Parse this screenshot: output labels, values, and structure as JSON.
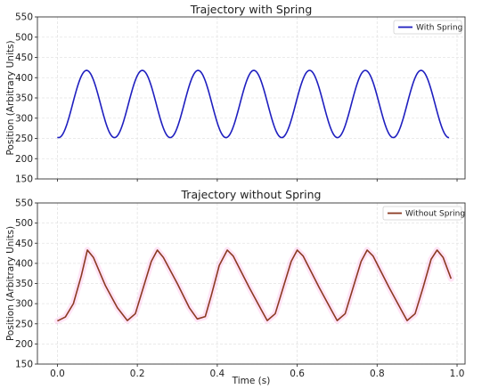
{
  "chart_data": [
    {
      "type": "line",
      "title": "Trajectory with Spring",
      "xlabel": "",
      "ylabel": "Position (Arbitrary Units)",
      "xlim": [
        -0.05,
        1.02
      ],
      "ylim": [
        150,
        550
      ],
      "yticks": [
        150,
        200,
        250,
        300,
        350,
        400,
        450,
        500,
        550
      ],
      "xticks": [
        0.0,
        0.2,
        0.4,
        0.6,
        0.8,
        1.0
      ],
      "xtick_labels": [],
      "grid": true,
      "legend_position": "top-right",
      "series": [
        {
          "name": "With Spring",
          "color": "#1f1fbf",
          "shape": "sine",
          "x_start": 0.0,
          "x_end": 0.98,
          "min": 252,
          "max": 418,
          "period": 0.1395,
          "first_peak_x": 0.073,
          "samples": 400
        }
      ]
    },
    {
      "type": "line",
      "title": "Trajectory without Spring",
      "xlabel": "Time (s)",
      "ylabel": "Position (Arbitrary Units)",
      "xlim": [
        -0.05,
        1.02
      ],
      "ylim": [
        150,
        550
      ],
      "yticks": [
        150,
        200,
        250,
        300,
        350,
        400,
        450,
        500,
        550
      ],
      "xticks": [
        0.0,
        0.2,
        0.4,
        0.6,
        0.8,
        1.0
      ],
      "xtick_labels": [
        "0.0",
        "0.2",
        "0.4",
        "0.6",
        "0.8",
        "1.0"
      ],
      "grid": true,
      "legend_position": "top-right",
      "series": [
        {
          "name": "Without Spring",
          "color": "#8b3a22",
          "glow_color": "#ff9ee0",
          "points": [
            [
              0.0,
              257
            ],
            [
              0.02,
              267
            ],
            [
              0.04,
              300
            ],
            [
              0.06,
              370
            ],
            [
              0.075,
              433
            ],
            [
              0.09,
              415
            ],
            [
              0.12,
              345
            ],
            [
              0.15,
              290
            ],
            [
              0.175,
              258
            ],
            [
              0.195,
              275
            ],
            [
              0.215,
              340
            ],
            [
              0.235,
              405
            ],
            [
              0.25,
              433
            ],
            [
              0.265,
              415
            ],
            [
              0.3,
              350
            ],
            [
              0.33,
              290
            ],
            [
              0.35,
              262
            ],
            [
              0.37,
              268
            ],
            [
              0.385,
              320
            ],
            [
              0.405,
              395
            ],
            [
              0.425,
              433
            ],
            [
              0.44,
              418
            ],
            [
              0.48,
              340
            ],
            [
              0.51,
              285
            ],
            [
              0.525,
              258
            ],
            [
              0.545,
              275
            ],
            [
              0.565,
              340
            ],
            [
              0.585,
              405
            ],
            [
              0.6,
              433
            ],
            [
              0.615,
              418
            ],
            [
              0.655,
              340
            ],
            [
              0.685,
              285
            ],
            [
              0.7,
              258
            ],
            [
              0.72,
              275
            ],
            [
              0.74,
              340
            ],
            [
              0.76,
              405
            ],
            [
              0.775,
              433
            ],
            [
              0.79,
              418
            ],
            [
              0.83,
              340
            ],
            [
              0.86,
              285
            ],
            [
              0.875,
              258
            ],
            [
              0.895,
              275
            ],
            [
              0.915,
              340
            ],
            [
              0.935,
              410
            ],
            [
              0.95,
              433
            ],
            [
              0.965,
              415
            ],
            [
              0.985,
              362
            ]
          ]
        }
      ]
    }
  ]
}
